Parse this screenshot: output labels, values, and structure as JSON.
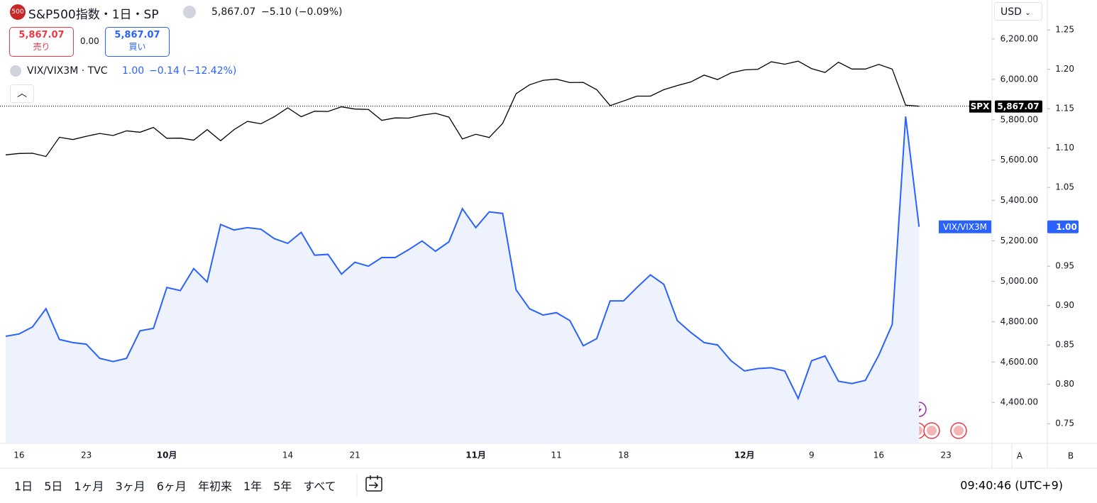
{
  "ui": {
    "logo": "500",
    "symbol": "S&P500指数・1日・SP",
    "price": "5,867.07",
    "change": "−5.10 (−0.09%)",
    "sell_price": "5,867.07",
    "sell": "売り",
    "spread": "0.00",
    "buy_price": "5,867.07",
    "buy": "買い",
    "overlay": "VIX/VIX3M · TVC",
    "overlay_value": "1.00",
    "overlay_change": "−0.14 (−12.42%)",
    "currency": "USD",
    "axis_buttons": [
      "A",
      "B"
    ],
    "timeframes": [
      "1日",
      "5日",
      "1ヶ月",
      "3ヶ月",
      "6ヶ月",
      "年初来",
      "1年",
      "5年",
      "すべて"
    ],
    "clock": "09:40:46 (UTC+9)"
  },
  "chart_data": {
    "type": "line",
    "categories": [
      null,
      "16",
      null,
      null,
      null,
      null,
      "23",
      null,
      null,
      null,
      null,
      null,
      "10月",
      null,
      null,
      null,
      null,
      null,
      null,
      null,
      null,
      "14",
      null,
      null,
      null,
      null,
      "21",
      null,
      null,
      null,
      null,
      null,
      null,
      null,
      null,
      "11月",
      null,
      null,
      null,
      null,
      null,
      "11",
      null,
      null,
      null,
      null,
      "18",
      null,
      null,
      null,
      null,
      null,
      null,
      null,
      null,
      "12月",
      null,
      null,
      null,
      null,
      "9",
      null,
      null,
      null,
      null,
      "16",
      null,
      null,
      null,
      null,
      "23",
      null,
      null,
      null
    ],
    "series": [
      {
        "name": "SPX",
        "color": "#000000",
        "axis": "y",
        "last_label": "5,867.07",
        "values": [
          5626,
          5633,
          5634,
          5618,
          5713,
          5702,
          5718,
          5732,
          5722,
          5745,
          5738,
          5762,
          5708,
          5709,
          5699,
          5751,
          5696,
          5751,
          5792,
          5780,
          5815,
          5859,
          5815,
          5842,
          5841,
          5864,
          5853,
          5851,
          5797,
          5809,
          5808,
          5823,
          5832,
          5813,
          5705,
          5728,
          5712,
          5782,
          5929,
          5973,
          5995,
          6001,
          5984,
          5985,
          5949,
          5870,
          5893,
          5917,
          5917,
          5949,
          5969,
          5987,
          6021,
          5999,
          6032,
          6047,
          6050,
          6087,
          6075,
          6090,
          6053,
          6034,
          6085,
          6051,
          6051,
          6074,
          6051,
          5872,
          5867.07,
          null,
          null,
          null,
          null,
          null
        ]
      },
      {
        "name": "VIX/VIX3M",
        "color": "#2962ff",
        "axis": "y2",
        "fill": "#eef2fc",
        "last_label": "1.00",
        "values": [
          0.861,
          0.864,
          0.873,
          0.896,
          0.857,
          0.853,
          0.851,
          0.833,
          0.829,
          0.833,
          0.868,
          0.871,
          0.923,
          0.919,
          0.947,
          0.93,
          1.003,
          0.996,
          0.999,
          0.997,
          0.985,
          0.979,
          0.993,
          0.964,
          0.965,
          0.94,
          0.955,
          0.95,
          0.961,
          0.961,
          0.971,
          0.982,
          0.969,
          0.981,
          1.023,
          0.999,
          1.019,
          1.017,
          0.92,
          0.896,
          0.888,
          0.891,
          0.881,
          0.849,
          0.858,
          0.906,
          0.906,
          0.923,
          0.939,
          0.927,
          0.881,
          0.866,
          0.853,
          0.85,
          0.83,
          0.817,
          0.82,
          0.821,
          0.817,
          0.782,
          0.83,
          0.836,
          0.804,
          0.801,
          0.805,
          0.837,
          0.876,
          1.14,
          1.0,
          null,
          null,
          null,
          null,
          null
        ]
      }
    ],
    "ylim": [
      4197,
      6393
    ],
    "yticks": [
      {
        "value": 6200,
        "label": "6,200.00"
      },
      {
        "value": 6000,
        "label": "6,000.00"
      },
      {
        "value": 5800,
        "label": "5,800.00"
      },
      {
        "value": 5600,
        "label": "5,600.00"
      },
      {
        "value": 5400,
        "label": "5,400.00"
      },
      {
        "value": 5200,
        "label": "5,200.00"
      },
      {
        "value": 5000,
        "label": "5,000.00"
      },
      {
        "value": 4800,
        "label": "4,800.00"
      },
      {
        "value": 4600,
        "label": "4,600.00"
      },
      {
        "value": 4400,
        "label": "4,400.00"
      }
    ],
    "y2lim": [
      0.725,
      1.288
    ],
    "y2ticks": [
      {
        "value": 1.25,
        "label": "1.25"
      },
      {
        "value": 1.2,
        "label": "1.20"
      },
      {
        "value": 1.15,
        "label": "1.15"
      },
      {
        "value": 1.1,
        "label": "1.10"
      },
      {
        "value": 1.05,
        "label": "1.05"
      },
      {
        "value": 1.0,
        "label": "1.00"
      },
      {
        "value": 0.95,
        "label": "0.95"
      },
      {
        "value": 0.9,
        "label": "0.90"
      },
      {
        "value": 0.85,
        "label": "0.85"
      },
      {
        "value": 0.8,
        "label": "0.80"
      },
      {
        "value": 0.75,
        "label": "0.75"
      }
    ],
    "grid": false
  }
}
